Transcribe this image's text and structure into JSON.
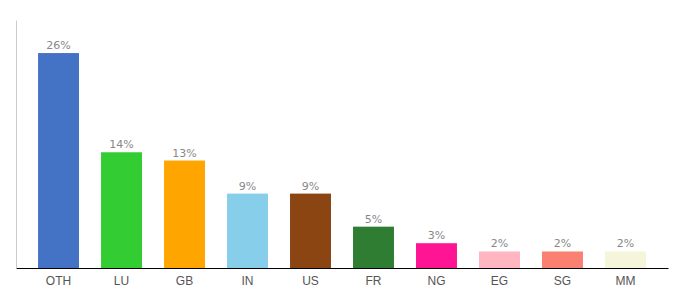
{
  "chart_data": {
    "type": "bar",
    "categories": [
      "OTH",
      "LU",
      "GB",
      "IN",
      "US",
      "FR",
      "NG",
      "EG",
      "SG",
      "MM"
    ],
    "values": [
      26,
      14,
      13,
      9,
      9,
      5,
      3,
      2,
      2,
      2
    ],
    "value_labels": [
      "26%",
      "14%",
      "13%",
      "9%",
      "9%",
      "5%",
      "3%",
      "2%",
      "2%",
      "2%"
    ],
    "colors": [
      "#4472C4",
      "#33CC33",
      "#FFA500",
      "#87CEEB",
      "#8B4513",
      "#2E7D32",
      "#FF1493",
      "#FFB6C1",
      "#FA8072",
      "#F5F5DC"
    ],
    "ylim": [
      0,
      30
    ],
    "data_labels": true,
    "tick_labels": "x",
    "grid": false
  }
}
